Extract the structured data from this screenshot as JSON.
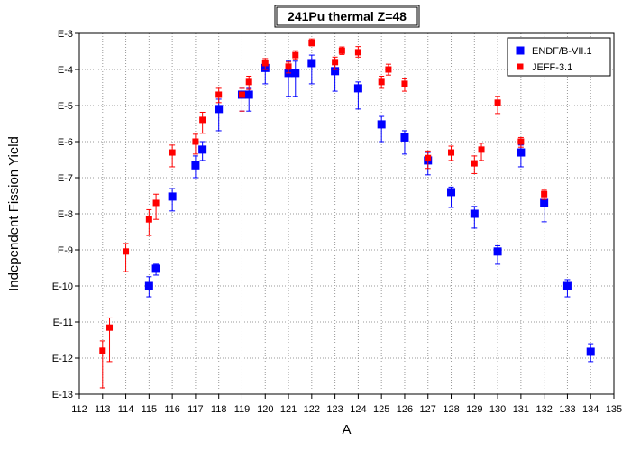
{
  "chart_data": {
    "type": "scatter",
    "title": "241Pu thermal Z=48",
    "xlabel": "A",
    "ylabel": "Independent Fission Yield",
    "xlim": [
      112,
      135
    ],
    "ylim_log10": [
      -13,
      -3
    ],
    "scale_y": "log",
    "x_ticks": [
      "112",
      "113",
      "114",
      "115",
      "116",
      "117",
      "118",
      "119",
      "120",
      "121",
      "122",
      "123",
      "124",
      "125",
      "126",
      "127",
      "128",
      "129",
      "130",
      "131",
      "132",
      "133",
      "134",
      "135"
    ],
    "y_ticks": [
      "E-3",
      "E-4",
      "E-5",
      "E-6",
      "E-7",
      "E-8",
      "E-9",
      "E-10",
      "E-11",
      "E-12",
      "E-13"
    ],
    "grid": true,
    "legend_position": "top-right",
    "series": [
      {
        "name": "ENDF/B-VII.1",
        "color": "#0000ff",
        "marker": "square-large",
        "points": [
          {
            "x": 115,
            "y": "1.0E-10",
            "err_low": "5.0E-11",
            "err_high": "1.8E-10"
          },
          {
            "x": 115.3,
            "y": "3.0E-10",
            "err_low": "2.0E-10",
            "err_high": "4.0E-10"
          },
          {
            "x": 116,
            "y": "3.0E-8",
            "err_low": "1.2E-8",
            "err_high": "5.0E-8"
          },
          {
            "x": 117,
            "y": "2.2E-7",
            "err_low": "1.0E-7",
            "err_high": "4.0E-7"
          },
          {
            "x": 117.3,
            "y": "6.0E-7",
            "err_low": "3.0E-7",
            "err_high": "1.0E-6"
          },
          {
            "x": 118,
            "y": "8.0E-6",
            "err_low": "2.0E-6",
            "err_high": "1.5E-5"
          },
          {
            "x": 119,
            "y": "2.0E-5",
            "err_low": "7.0E-6",
            "err_high": "3.0E-5"
          },
          {
            "x": 119.3,
            "y": "2.0E-5",
            "err_low": "7.0E-6",
            "err_high": "3.0E-5"
          },
          {
            "x": 120,
            "y": "1.1E-4",
            "err_low": "4.0E-5",
            "err_high": "1.5E-4"
          },
          {
            "x": 121,
            "y": "8.0E-5",
            "err_low": "1.8E-5",
            "err_high": "1.7E-4"
          },
          {
            "x": 121.3,
            "y": "8.0E-5",
            "err_low": "1.8E-5",
            "err_high": "1.7E-4"
          },
          {
            "x": 122,
            "y": "1.5E-4",
            "err_low": "4.0E-5",
            "err_high": "2.5E-4"
          },
          {
            "x": 123,
            "y": "9.0E-5",
            "err_low": "2.5E-5",
            "err_high": "1.6E-4"
          },
          {
            "x": 124,
            "y": "3.0E-5",
            "err_low": "8.0E-6",
            "err_high": "4.5E-5"
          },
          {
            "x": 125,
            "y": "3.0E-6",
            "err_low": "1.0E-6",
            "err_high": "5.0E-6"
          },
          {
            "x": 126,
            "y": "1.3E-6",
            "err_low": "4.5E-7",
            "err_high": "2.0E-6"
          },
          {
            "x": 127,
            "y": "3.0E-7",
            "err_low": "1.2E-7",
            "err_high": "5.0E-7"
          },
          {
            "x": 128,
            "y": "4.0E-8",
            "err_low": "1.5E-8",
            "err_high": "5.5E-8"
          },
          {
            "x": 129,
            "y": "1.0E-8",
            "err_low": "4.0E-9",
            "err_high": "1.6E-8"
          },
          {
            "x": 130,
            "y": "9.0E-10",
            "err_low": "4.0E-10",
            "err_high": "1.3E-9"
          },
          {
            "x": 131,
            "y": "5.0E-7",
            "err_low": "2.0E-7",
            "err_high": "8.0E-7"
          },
          {
            "x": 132,
            "y": "2.0E-8",
            "err_low": "6.0E-9",
            "err_high": "3.5E-8"
          },
          {
            "x": 133,
            "y": "1.0E-10",
            "err_low": "5.0E-11",
            "err_high": "1.5E-10"
          },
          {
            "x": 134,
            "y": "1.5E-12",
            "err_low": "8.0E-13",
            "err_high": "2.5E-12"
          }
        ]
      },
      {
        "name": "JEFF-3.1",
        "color": "#ff0000",
        "marker": "square-small",
        "points": [
          {
            "x": 113,
            "y": "1.6E-12",
            "err_low": "1.5E-13",
            "err_high": "3.0E-12"
          },
          {
            "x": 113.3,
            "y": "7.0E-12",
            "err_low": "8.0E-13",
            "err_high": "1.3E-11"
          },
          {
            "x": 114,
            "y": "9.0E-10",
            "err_low": "2.5E-10",
            "err_high": "1.5E-9"
          },
          {
            "x": 115,
            "y": "7.0E-9",
            "err_low": "2.5E-9",
            "err_high": "1.3E-8"
          },
          {
            "x": 115.3,
            "y": "2.0E-8",
            "err_low": "7.0E-9",
            "err_high": "3.5E-8"
          },
          {
            "x": 116,
            "y": "5.0E-7",
            "err_low": "2.0E-7",
            "err_high": "8.0E-7"
          },
          {
            "x": 117,
            "y": "1.0E-6",
            "err_low": "4.5E-7",
            "err_high": "1.6E-6"
          },
          {
            "x": 117.3,
            "y": "4.0E-6",
            "err_low": "1.7E-6",
            "err_high": "6.5E-6"
          },
          {
            "x": 118,
            "y": "2.0E-5",
            "err_low": "1.2E-5",
            "err_high": "3.0E-5"
          },
          {
            "x": 119,
            "y": "2.0E-5",
            "err_low": "7.0E-6",
            "err_high": "3.0E-5"
          },
          {
            "x": 119.3,
            "y": "4.5E-5",
            "err_low": "2.8E-5",
            "err_high": "6.5E-5"
          },
          {
            "x": 120,
            "y": "1.5E-4",
            "err_low": "1.0E-4",
            "err_high": "2.0E-4"
          },
          {
            "x": 121,
            "y": "1.2E-4",
            "err_low": "8.0E-5",
            "err_high": "1.6E-4"
          },
          {
            "x": 121.3,
            "y": "2.5E-4",
            "err_low": "1.9E-4",
            "err_high": "3.3E-4"
          },
          {
            "x": 122,
            "y": "5.5E-4",
            "err_low": "4.5E-4",
            "err_high": "7.0E-4"
          },
          {
            "x": 123,
            "y": "1.6E-4",
            "err_low": "1.0E-4",
            "err_high": "2.2E-4"
          },
          {
            "x": 123.3,
            "y": "3.3E-4",
            "err_low": "2.6E-4",
            "err_high": "4.2E-4"
          },
          {
            "x": 124,
            "y": "3.0E-4",
            "err_low": "2.2E-4",
            "err_high": "4.3E-4"
          },
          {
            "x": 125,
            "y": "4.5E-5",
            "err_low": "3.0E-5",
            "err_high": "6.5E-5"
          },
          {
            "x": 125.3,
            "y": "1.0E-4",
            "err_low": "7.0E-5",
            "err_high": "1.4E-4"
          },
          {
            "x": 126,
            "y": "4.0E-5",
            "err_low": "2.5E-5",
            "err_high": "5.5E-5"
          },
          {
            "x": 127,
            "y": "3.5E-7",
            "err_low": "1.8E-7",
            "err_high": "5.5E-7"
          },
          {
            "x": 128,
            "y": "5.0E-7",
            "err_low": "3.0E-7",
            "err_high": "7.5E-7"
          },
          {
            "x": 129,
            "y": "2.5E-7",
            "err_low": "1.3E-7",
            "err_high": "4.0E-7"
          },
          {
            "x": 129.3,
            "y": "6.0E-7",
            "err_low": "3.0E-7",
            "err_high": "9.0E-7"
          },
          {
            "x": 130,
            "y": "1.2E-5",
            "err_low": "6.0E-6",
            "err_high": "1.8E-5"
          },
          {
            "x": 131,
            "y": "1.0E-6",
            "err_low": "7.0E-7",
            "err_high": "1.3E-6"
          },
          {
            "x": 132,
            "y": "3.5E-8",
            "err_low": "2.5E-8",
            "err_high": "4.5E-8"
          }
        ]
      }
    ]
  }
}
